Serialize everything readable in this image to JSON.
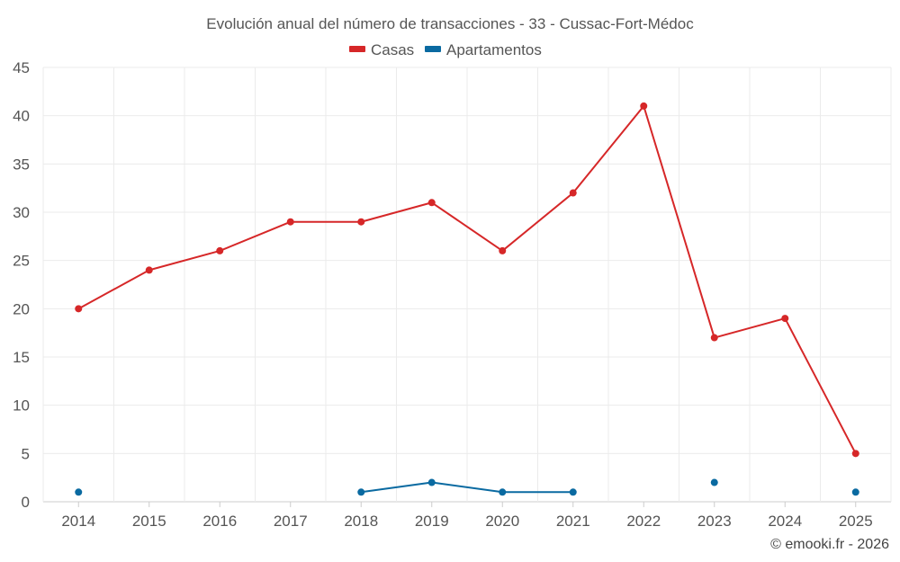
{
  "chart_data": {
    "type": "line",
    "title": "Evolución anual del número de transacciones - 33 - Cussac-Fort-Médoc",
    "xlabel": "",
    "ylabel": "",
    "ylim": [
      0,
      45
    ],
    "yticks": [
      0,
      5,
      10,
      15,
      20,
      25,
      30,
      35,
      40,
      45
    ],
    "categories": [
      "2014",
      "2015",
      "2016",
      "2017",
      "2018",
      "2019",
      "2020",
      "2021",
      "2022",
      "2023",
      "2024",
      "2025"
    ],
    "legend_position": "top-center",
    "grid": true,
    "series": [
      {
        "name": "Casas",
        "color": "#d62728",
        "values": [
          20,
          24,
          26,
          29,
          29,
          31,
          26,
          32,
          41,
          17,
          19,
          5
        ]
      },
      {
        "name": "Apartamentos",
        "color": "#0a6aa1",
        "values": [
          1,
          null,
          null,
          null,
          1,
          2,
          1,
          1,
          null,
          2,
          null,
          1
        ]
      }
    ],
    "credit": "© emooki.fr - 2026"
  }
}
